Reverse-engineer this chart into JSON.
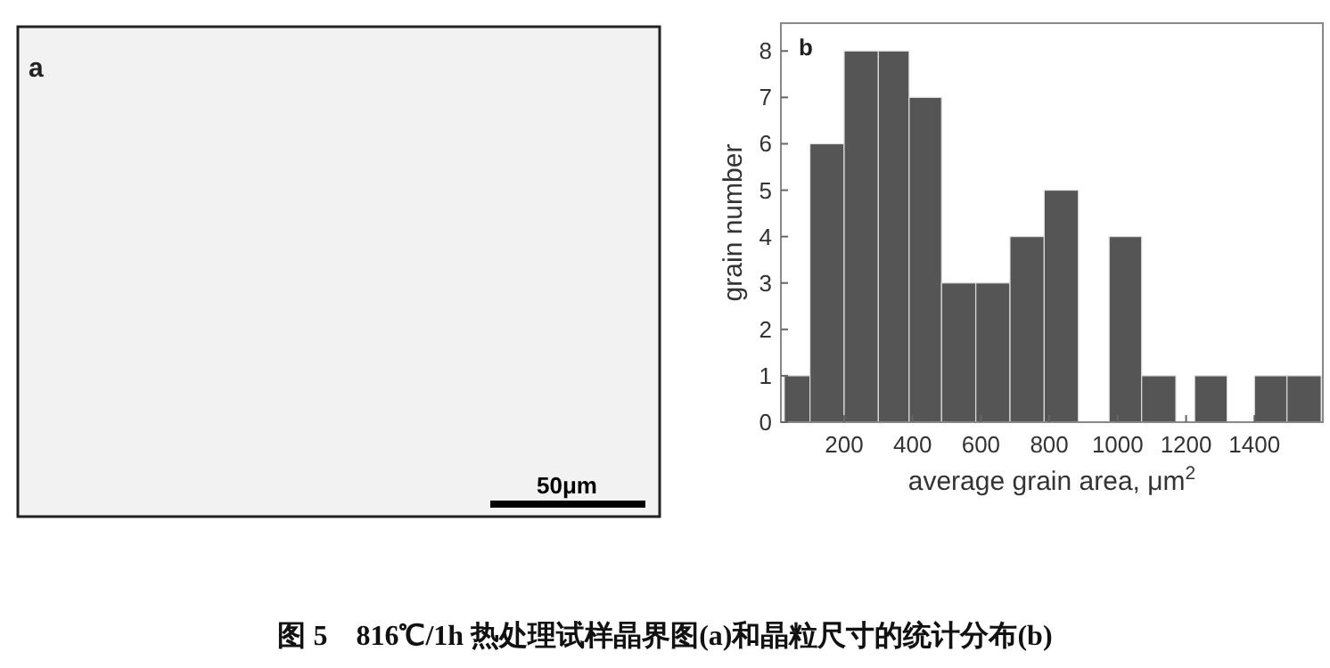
{
  "chart_data": {
    "type": "histogram",
    "xlabel": "average grain area, μm$^{2}$",
    "ylabel": "grain number",
    "bins": [
      25,
      100,
      200,
      300,
      390,
      485,
      585,
      685,
      785,
      885,
      975,
      1070,
      1170,
      1225,
      1320,
      1400,
      1495,
      1595
    ],
    "values": [
      1,
      6,
      8,
      8,
      7,
      3,
      3,
      4,
      5,
      0,
      4,
      1,
      0,
      1,
      0,
      1,
      1
    ],
    "color": "#555555",
    "xlim": [
      15,
      1600
    ],
    "xticks": [
      200,
      400,
      600,
      800,
      1000,
      1200,
      1400
    ],
    "ylim": [
      0,
      8.6
    ],
    "yticks": [
      0,
      1,
      2,
      3,
      4,
      5,
      6,
      7,
      8
    ],
    "grid": false,
    "annotations": [
      "b",
      "a",
      "50μm",
      "图 5　816℃/1h 热处理试样晶界图(a)和晶粒尺寸的统计分布(b)"
    ]
  }
}
